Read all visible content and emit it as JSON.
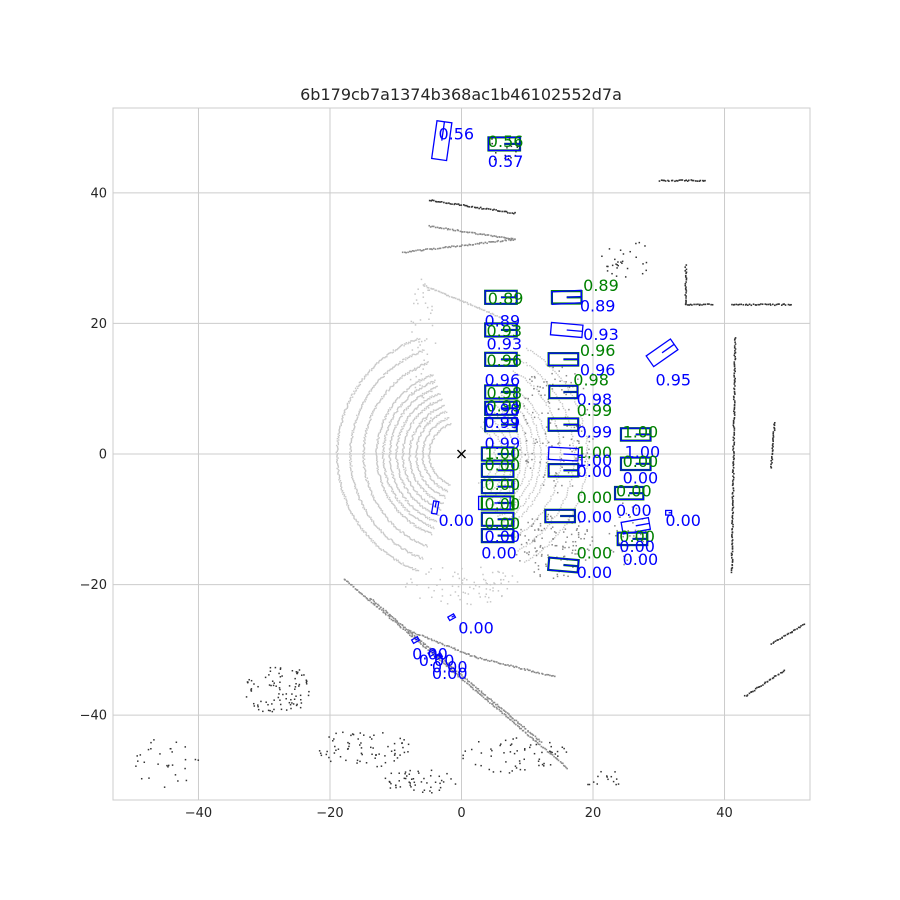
{
  "chart_data": {
    "type": "scatter",
    "title": "6b179cb7a1374b368ac1b46102552d7a",
    "xlabel": "",
    "ylabel": "",
    "xlim": [
      -53,
      53
    ],
    "ylim": [
      -53,
      53
    ],
    "xticks": [
      -40,
      -20,
      0,
      20,
      40
    ],
    "yticks": [
      -40,
      -20,
      0,
      20,
      40
    ],
    "grid": true,
    "colors": {
      "gt_box": "#008000",
      "pred_box": "#0000ff",
      "points_near": "#c8c8c8",
      "points_far": "#333333",
      "ego": "#000000",
      "grid": "#cccccc"
    },
    "ego_position": [
      0,
      0
    ],
    "point_clusters": [
      {
        "shape": "arc",
        "cx": 0,
        "cy": 0,
        "r": [
          5,
          6,
          7,
          8,
          9,
          10,
          11,
          12,
          13,
          15,
          17,
          19
        ],
        "start": 110,
        "end": 250,
        "tone": "near"
      },
      {
        "shape": "line",
        "from": [
          -18,
          -19
        ],
        "to": [
          16,
          -48
        ],
        "tone": "mid"
      },
      {
        "shape": "line",
        "from": [
          -14,
          -22
        ],
        "to": [
          12,
          -44
        ],
        "tone": "mid"
      },
      {
        "shape": "line",
        "from": [
          -8,
          -27
        ],
        "to": [
          2,
          -31
        ],
        "tone": "mid"
      },
      {
        "shape": "line",
        "from": [
          2,
          -31
        ],
        "to": [
          14,
          -34
        ],
        "tone": "mid"
      },
      {
        "shape": "line",
        "from": [
          -9,
          31
        ],
        "to": [
          8,
          33
        ],
        "tone": "mid"
      },
      {
        "shape": "line",
        "from": [
          -6,
          26
        ],
        "to": [
          6,
          21
        ],
        "tone": "near"
      },
      {
        "shape": "line",
        "from": [
          -5,
          35
        ],
        "to": [
          8,
          33
        ],
        "tone": "mid"
      },
      {
        "shape": "line",
        "from": [
          -5,
          39
        ],
        "to": [
          8,
          37
        ],
        "tone": "far"
      },
      {
        "shape": "line",
        "from": [
          34,
          29
        ],
        "to": [
          34,
          23
        ],
        "tone": "far"
      },
      {
        "shape": "line",
        "from": [
          34,
          23
        ],
        "to": [
          38,
          23
        ],
        "tone": "far"
      },
      {
        "shape": "line",
        "from": [
          41,
          23
        ],
        "to": [
          50,
          23
        ],
        "tone": "far"
      },
      {
        "shape": "line",
        "from": [
          41.5,
          18
        ],
        "to": [
          41,
          -18
        ],
        "tone": "far"
      },
      {
        "shape": "line",
        "from": [
          47.5,
          5
        ],
        "to": [
          47,
          -2
        ],
        "tone": "far"
      },
      {
        "shape": "line",
        "from": [
          43,
          -37
        ],
        "to": [
          49,
          -33
        ],
        "tone": "far"
      },
      {
        "shape": "line",
        "from": [
          47,
          -29
        ],
        "to": [
          52,
          -26
        ],
        "tone": "far"
      },
      {
        "shape": "line",
        "from": [
          30,
          42
        ],
        "to": [
          37,
          42
        ],
        "tone": "far"
      },
      {
        "shape": "blob",
        "cx": -28,
        "cy": -36,
        "rx": 5,
        "ry": 4,
        "n": 90,
        "tone": "far"
      },
      {
        "shape": "blob",
        "cx": -15,
        "cy": -45,
        "rx": 7,
        "ry": 3,
        "n": 70,
        "tone": "far"
      },
      {
        "shape": "blob",
        "cx": -6,
        "cy": -50,
        "rx": 6,
        "ry": 2,
        "n": 50,
        "tone": "far"
      },
      {
        "shape": "blob",
        "cx": 8,
        "cy": -46,
        "rx": 8,
        "ry": 3,
        "n": 60,
        "tone": "far"
      },
      {
        "shape": "blob",
        "cx": -45,
        "cy": -47,
        "rx": 5,
        "ry": 4,
        "n": 30,
        "tone": "far"
      },
      {
        "shape": "blob",
        "cx": 25,
        "cy": 30,
        "rx": 4,
        "ry": 3,
        "n": 30,
        "tone": "far"
      },
      {
        "shape": "blob",
        "cx": 6,
        "cy": 47,
        "rx": 3,
        "ry": 2,
        "n": 20,
        "tone": "far"
      },
      {
        "shape": "blob",
        "cx": 22,
        "cy": -50,
        "rx": 3,
        "ry": 2,
        "n": 15,
        "tone": "far"
      },
      {
        "shape": "blob",
        "cx": 14,
        "cy": -14,
        "rx": 6,
        "ry": 5,
        "n": 120,
        "tone": "mid"
      },
      {
        "shape": "blob",
        "cx": 14,
        "cy": 4,
        "rx": 6,
        "ry": 10,
        "n": 140,
        "tone": "mid"
      },
      {
        "shape": "blob",
        "cx": 0,
        "cy": -20,
        "rx": 9,
        "ry": 3,
        "n": 80,
        "tone": "near"
      },
      {
        "shape": "blob",
        "cx": 25,
        "cy": -12,
        "rx": 3,
        "ry": 5,
        "n": 40,
        "tone": "mid"
      },
      {
        "shape": "blob",
        "cx": -6,
        "cy": 15,
        "rx": 2,
        "ry": 12,
        "n": 60,
        "tone": "near"
      }
    ],
    "gt_boxes": [
      {
        "x": 6.5,
        "y": 47.5,
        "len": 4.8,
        "wid": 2.0,
        "yaw": 0,
        "label": "0.56"
      },
      {
        "x": 6.0,
        "y": 24.0,
        "len": 4.8,
        "wid": 2.0,
        "yaw": 0,
        "label": "0.89"
      },
      {
        "x": 16.0,
        "y": 24.0,
        "len": 4.5,
        "wid": 1.9,
        "yaw": 0,
        "label": "0.89"
      },
      {
        "x": 6.0,
        "y": 19.0,
        "len": 4.8,
        "wid": 2.0,
        "yaw": 0,
        "label": "0.93"
      },
      {
        "x": 15.5,
        "y": 14.5,
        "len": 4.5,
        "wid": 1.9,
        "yaw": 0,
        "label": "0.96"
      },
      {
        "x": 6.0,
        "y": 14.5,
        "len": 4.8,
        "wid": 2.0,
        "yaw": 0,
        "label": "0.96"
      },
      {
        "x": 15.5,
        "y": 9.5,
        "len": 4.3,
        "wid": 1.9,
        "yaw": 0,
        "label": "0.98"
      },
      {
        "x": 6.0,
        "y": 9.5,
        "len": 4.8,
        "wid": 2.0,
        "yaw": 0,
        "label": "0.98"
      },
      {
        "x": 6.0,
        "y": 7.0,
        "len": 4.8,
        "wid": 2.0,
        "yaw": 0,
        "label": "0.99"
      },
      {
        "x": 15.5,
        "y": 4.5,
        "len": 4.5,
        "wid": 1.9,
        "yaw": 0,
        "label": "0.99"
      },
      {
        "x": 6.0,
        "y": 4.5,
        "len": 4.8,
        "wid": 2.0,
        "yaw": 0,
        "label": "0.99"
      },
      {
        "x": 26.5,
        "y": 3.0,
        "len": 4.5,
        "wid": 1.9,
        "yaw": 0,
        "label": "1.00"
      },
      {
        "x": 5.5,
        "y": 0.0,
        "len": 4.8,
        "wid": 2.0,
        "yaw": 0,
        "label": "1.00"
      },
      {
        "x": 15.5,
        "y": -2.5,
        "len": 4.5,
        "wid": 1.9,
        "yaw": 0,
        "label": "1.00"
      },
      {
        "x": 26.5,
        "y": -1.5,
        "len": 4.5,
        "wid": 1.9,
        "yaw": 0,
        "label": "0.00"
      },
      {
        "x": 5.5,
        "y": -2.5,
        "len": 4.8,
        "wid": 2.0,
        "yaw": 0,
        "label": "0.00"
      },
      {
        "x": 5.5,
        "y": -5.0,
        "len": 4.8,
        "wid": 2.0,
        "yaw": 0,
        "label": "0.00"
      },
      {
        "x": 25.5,
        "y": -6.0,
        "len": 4.3,
        "wid": 1.9,
        "yaw": 0,
        "label": "0.00"
      },
      {
        "x": 5.5,
        "y": -7.5,
        "len": 4.8,
        "wid": 2.0,
        "yaw": 0,
        "label": "0.00"
      },
      {
        "x": 15.0,
        "y": -9.5,
        "len": 4.5,
        "wid": 1.9,
        "yaw": 0,
        "label": "0.00"
      },
      {
        "x": 5.5,
        "y": -10.0,
        "len": 4.8,
        "wid": 2.0,
        "yaw": 0,
        "label": "0.00"
      },
      {
        "x": 5.5,
        "y": -12.5,
        "len": 4.8,
        "wid": 2.0,
        "yaw": 0,
        "label": "0.00"
      },
      {
        "x": 26.0,
        "y": -13.0,
        "len": 4.5,
        "wid": 1.9,
        "yaw": 0,
        "label": "0.00"
      },
      {
        "x": 15.5,
        "y": -17.0,
        "len": 4.5,
        "wid": 1.9,
        "yaw": -5,
        "label": "0.00"
      }
    ],
    "pred_boxes": [
      {
        "x": -3.0,
        "y": 48.0,
        "len": 5.8,
        "wid": 2.3,
        "yaw": 82,
        "label": "0.56"
      },
      {
        "x": 6.5,
        "y": 47.5,
        "len": 4.8,
        "wid": 2.0,
        "yaw": 0,
        "label": "0.57"
      },
      {
        "x": 6.0,
        "y": 24.0,
        "len": 4.8,
        "wid": 2.0,
        "yaw": 0,
        "label": "0.89"
      },
      {
        "x": 16.0,
        "y": 24.0,
        "len": 4.5,
        "wid": 1.9,
        "yaw": 3,
        "label": "0.89"
      },
      {
        "x": 16.0,
        "y": 19.0,
        "len": 4.8,
        "wid": 1.9,
        "yaw": -5,
        "label": "0.93"
      },
      {
        "x": 6.0,
        "y": 19.0,
        "len": 4.8,
        "wid": 2.0,
        "yaw": 0,
        "label": "0.93"
      },
      {
        "x": 30.5,
        "y": 15.5,
        "len": 4.5,
        "wid": 2.0,
        "yaw": 35,
        "label": "0.95"
      },
      {
        "x": 15.5,
        "y": 14.5,
        "len": 4.5,
        "wid": 1.9,
        "yaw": 0,
        "label": "0.96"
      },
      {
        "x": 6.0,
        "y": 14.5,
        "len": 4.8,
        "wid": 2.0,
        "yaw": 0,
        "label": "0.96"
      },
      {
        "x": 15.5,
        "y": 9.5,
        "len": 4.3,
        "wid": 1.9,
        "yaw": 0,
        "label": "0.98"
      },
      {
        "x": 6.0,
        "y": 9.5,
        "len": 4.8,
        "wid": 2.0,
        "yaw": 0,
        "label": "0.98"
      },
      {
        "x": 6.0,
        "y": 7.0,
        "len": 4.8,
        "wid": 2.0,
        "yaw": 0,
        "label": "0.98"
      },
      {
        "x": 15.5,
        "y": 4.5,
        "len": 4.5,
        "wid": 1.9,
        "yaw": 0,
        "label": "0.99"
      },
      {
        "x": 6.0,
        "y": 4.5,
        "len": 4.8,
        "wid": 2.0,
        "yaw": 0,
        "label": "0.99"
      },
      {
        "x": 26.5,
        "y": 3.0,
        "len": 4.5,
        "wid": 1.9,
        "yaw": 0,
        "label": "1.00"
      },
      {
        "x": 5.5,
        "y": 0.0,
        "len": 4.8,
        "wid": 2.0,
        "yaw": 0,
        "label": "0.99"
      },
      {
        "x": 15.5,
        "y": 0.0,
        "len": 4.5,
        "wid": 1.9,
        "yaw": -3,
        "label": "1.00"
      },
      {
        "x": 15.5,
        "y": -2.5,
        "len": 4.5,
        "wid": 1.9,
        "yaw": 0,
        "label": "0.00"
      },
      {
        "x": 26.5,
        "y": -1.5,
        "len": 4.5,
        "wid": 1.9,
        "yaw": 0,
        "label": "0.00"
      },
      {
        "x": 5.5,
        "y": -2.5,
        "len": 4.8,
        "wid": 2.0,
        "yaw": 0,
        "label": "0.00"
      },
      {
        "x": 5.5,
        "y": -5.0,
        "len": 4.8,
        "wid": 2.0,
        "yaw": 0,
        "label": "0.00"
      },
      {
        "x": 25.5,
        "y": -6.0,
        "len": 4.3,
        "wid": 1.9,
        "yaw": 0,
        "label": "0.00"
      },
      {
        "x": 5.0,
        "y": -7.5,
        "len": 4.8,
        "wid": 2.0,
        "yaw": 0,
        "label": "0.00"
      },
      {
        "x": -4.0,
        "y": -8.2,
        "len": 1.9,
        "wid": 0.8,
        "yaw": 80,
        "label": "0.00"
      },
      {
        "x": 15.0,
        "y": -9.5,
        "len": 4.5,
        "wid": 1.9,
        "yaw": 0,
        "label": "0.00"
      },
      {
        "x": 5.5,
        "y": -10.0,
        "len": 4.8,
        "wid": 2.0,
        "yaw": 0,
        "label": "0.00"
      },
      {
        "x": 31.5,
        "y": -9.0,
        "len": 0.9,
        "wid": 0.7,
        "yaw": 0,
        "label": "0.00"
      },
      {
        "x": 26.5,
        "y": -11.0,
        "len": 4.2,
        "wid": 1.8,
        "yaw": 10,
        "label": "0.00"
      },
      {
        "x": 5.5,
        "y": -12.5,
        "len": 4.8,
        "wid": 2.0,
        "yaw": 0,
        "label": "0.00"
      },
      {
        "x": 26.0,
        "y": -13.0,
        "len": 4.5,
        "wid": 1.9,
        "yaw": 0,
        "label": "0.00"
      },
      {
        "x": 15.5,
        "y": -17.0,
        "len": 4.5,
        "wid": 1.9,
        "yaw": -5,
        "label": "0.00"
      },
      {
        "x": -1.5,
        "y": -25.0,
        "len": 1.0,
        "wid": 0.6,
        "yaw": 30,
        "label": "0.00"
      },
      {
        "x": -7.0,
        "y": -28.5,
        "len": 1.0,
        "wid": 0.6,
        "yaw": 30,
        "label": "0.00"
      },
      {
        "x": -4.5,
        "y": -30.5,
        "len": 1.0,
        "wid": 0.6,
        "yaw": 30,
        "label": "0.00"
      },
      {
        "x": -3.5,
        "y": -31.0,
        "len": 1.0,
        "wid": 0.6,
        "yaw": 30,
        "label": "0.00"
      }
    ],
    "score_labels": [
      {
        "x": -3.5,
        "y": 48.2,
        "text": "0.56",
        "color": "pred"
      },
      {
        "x": 4.0,
        "y": 47.0,
        "text": "0.56",
        "color": "gt"
      },
      {
        "x": 4.0,
        "y": 44.0,
        "text": "0.57",
        "color": "pred"
      },
      {
        "x": 4.0,
        "y": 23.0,
        "text": "0.89",
        "color": "gt"
      },
      {
        "x": 18.5,
        "y": 25.0,
        "text": "0.89",
        "color": "gt"
      },
      {
        "x": 18.0,
        "y": 21.8,
        "text": "0.89",
        "color": "pred"
      },
      {
        "x": 3.5,
        "y": 19.5,
        "text": "0.89",
        "color": "pred"
      },
      {
        "x": 3.8,
        "y": 18.0,
        "text": "0.93",
        "color": "gt"
      },
      {
        "x": 18.5,
        "y": 17.5,
        "text": "0.93",
        "color": "pred"
      },
      {
        "x": 3.8,
        "y": 16.0,
        "text": "0.93",
        "color": "pred"
      },
      {
        "x": 18.0,
        "y": 15.0,
        "text": "0.96",
        "color": "gt"
      },
      {
        "x": 3.8,
        "y": 13.5,
        "text": "0.96",
        "color": "gt"
      },
      {
        "x": 18.0,
        "y": 12.0,
        "text": "0.96",
        "color": "pred"
      },
      {
        "x": 29.5,
        "y": 10.5,
        "text": "0.95",
        "color": "pred"
      },
      {
        "x": 3.5,
        "y": 10.5,
        "text": "0.96",
        "color": "pred"
      },
      {
        "x": 17.0,
        "y": 10.5,
        "text": "0.98",
        "color": "gt"
      },
      {
        "x": 3.8,
        "y": 8.5,
        "text": "0.98",
        "color": "gt"
      },
      {
        "x": 17.5,
        "y": 7.5,
        "text": "0.98",
        "color": "pred"
      },
      {
        "x": 3.8,
        "y": 6.5,
        "text": "0.99",
        "color": "gt"
      },
      {
        "x": 17.5,
        "y": 5.8,
        "text": "0.99",
        "color": "gt"
      },
      {
        "x": 3.5,
        "y": 6.0,
        "text": "0.98",
        "color": "pred"
      },
      {
        "x": 3.5,
        "y": 4.0,
        "text": "0.99",
        "color": "pred"
      },
      {
        "x": 17.5,
        "y": 2.5,
        "text": "0.99",
        "color": "pred"
      },
      {
        "x": 24.5,
        "y": 2.5,
        "text": "1.00",
        "color": "gt"
      },
      {
        "x": 3.5,
        "y": 0.8,
        "text": "0.99",
        "color": "pred"
      },
      {
        "x": 24.8,
        "y": -0.5,
        "text": "1.00",
        "color": "pred"
      },
      {
        "x": 3.5,
        "y": -0.8,
        "text": "1.00",
        "color": "gt"
      },
      {
        "x": 17.5,
        "y": -0.6,
        "text": "1.00",
        "color": "gt"
      },
      {
        "x": 17.5,
        "y": -1.8,
        "text": "1.00",
        "color": "pred"
      },
      {
        "x": 24.5,
        "y": -2.0,
        "text": "0.00",
        "color": "gt"
      },
      {
        "x": 3.5,
        "y": -2.5,
        "text": "0.00",
        "color": "gt"
      },
      {
        "x": 17.5,
        "y": -3.5,
        "text": "0.00",
        "color": "pred"
      },
      {
        "x": 24.5,
        "y": -4.5,
        "text": "0.00",
        "color": "pred"
      },
      {
        "x": 3.5,
        "y": -5.5,
        "text": "0.00",
        "color": "gt"
      },
      {
        "x": 23.5,
        "y": -6.5,
        "text": "0.00",
        "color": "gt"
      },
      {
        "x": 17.5,
        "y": -7.5,
        "text": "0.00",
        "color": "gt"
      },
      {
        "x": 3.5,
        "y": -8.5,
        "text": "0.00",
        "color": "gt"
      },
      {
        "x": 23.5,
        "y": -9.5,
        "text": "0.00",
        "color": "pred"
      },
      {
        "x": -3.5,
        "y": -11.0,
        "text": "0.00",
        "color": "pred"
      },
      {
        "x": 17.5,
        "y": -10.5,
        "text": "0.00",
        "color": "pred"
      },
      {
        "x": 31.0,
        "y": -11.0,
        "text": "0.00",
        "color": "pred"
      },
      {
        "x": 3.5,
        "y": -11.5,
        "text": "0.00",
        "color": "gt"
      },
      {
        "x": 3.5,
        "y": -13.5,
        "text": "0.00",
        "color": "pred"
      },
      {
        "x": 24.0,
        "y": -13.5,
        "text": "0.00",
        "color": "gt"
      },
      {
        "x": 24.0,
        "y": -15.0,
        "text": "0.00",
        "color": "pred"
      },
      {
        "x": 3.0,
        "y": -16.0,
        "text": "0.00",
        "color": "pred"
      },
      {
        "x": 17.5,
        "y": -16.0,
        "text": "0.00",
        "color": "gt"
      },
      {
        "x": 24.5,
        "y": -17.0,
        "text": "0.00",
        "color": "pred"
      },
      {
        "x": 17.5,
        "y": -19.0,
        "text": "0.00",
        "color": "pred"
      },
      {
        "x": -0.5,
        "y": -27.5,
        "text": "0.00",
        "color": "pred"
      },
      {
        "x": -7.5,
        "y": -31.5,
        "text": "0.00",
        "color": "pred"
      },
      {
        "x": -6.5,
        "y": -32.5,
        "text": "0.00",
        "color": "pred"
      },
      {
        "x": -4.5,
        "y": -33.5,
        "text": "0.00",
        "color": "pred"
      },
      {
        "x": -4.5,
        "y": -34.5,
        "text": "0.00",
        "color": "pred"
      }
    ]
  }
}
